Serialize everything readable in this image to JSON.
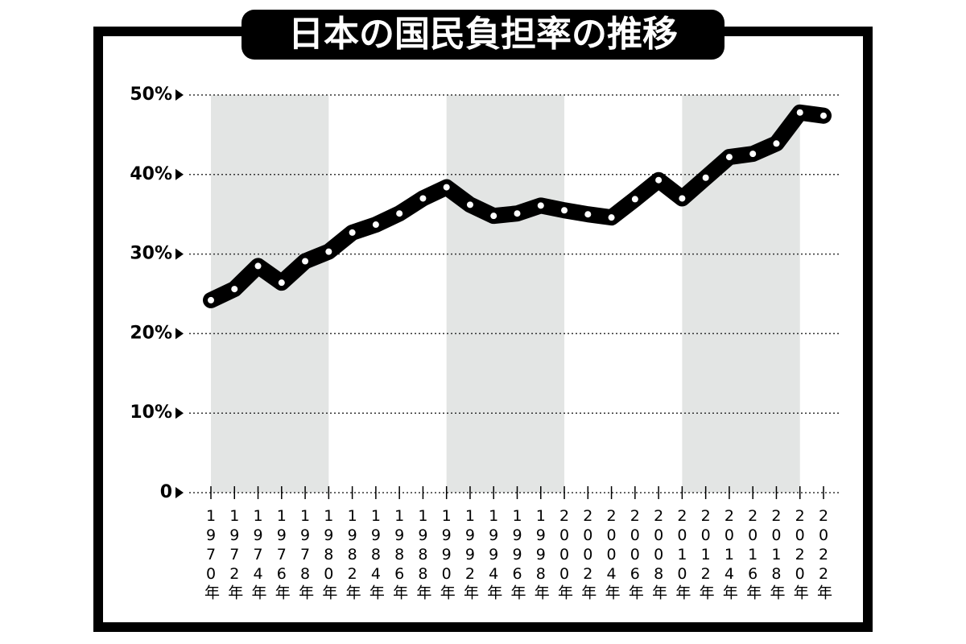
{
  "chart_data": {
    "type": "line",
    "title": "日本の国民負担率の推移",
    "categories": [
      "1970年",
      "1972年",
      "1974年",
      "1976年",
      "1978年",
      "1980年",
      "1982年",
      "1984年",
      "1986年",
      "1988年",
      "1990年",
      "1992年",
      "1994年",
      "1996年",
      "1998年",
      "2000年",
      "2002年",
      "2004年",
      "2006年",
      "2008年",
      "2010年",
      "2012年",
      "2014年",
      "2016年",
      "2018年",
      "2020年",
      "2022年"
    ],
    "values": [
      24.2,
      25.6,
      28.5,
      26.4,
      29.1,
      30.3,
      32.7,
      33.7,
      35.1,
      37.0,
      38.4,
      36.2,
      34.8,
      35.1,
      36.1,
      35.5,
      35.0,
      34.6,
      36.9,
      39.3,
      37.0,
      39.6,
      42.2,
      42.6,
      43.9,
      47.8,
      47.4
    ],
    "color": "#000000",
    "ylim": [
      0,
      50
    ],
    "yticks": [
      0,
      {
        "value": 10,
        "label": "10%"
      },
      {
        "value": 20,
        "label": "20%"
      },
      {
        "value": 30,
        "label": "30%"
      },
      {
        "value": 40,
        "label": "40%"
      },
      {
        "value": 50,
        "label": "50%"
      }
    ],
    "grid": true
  }
}
